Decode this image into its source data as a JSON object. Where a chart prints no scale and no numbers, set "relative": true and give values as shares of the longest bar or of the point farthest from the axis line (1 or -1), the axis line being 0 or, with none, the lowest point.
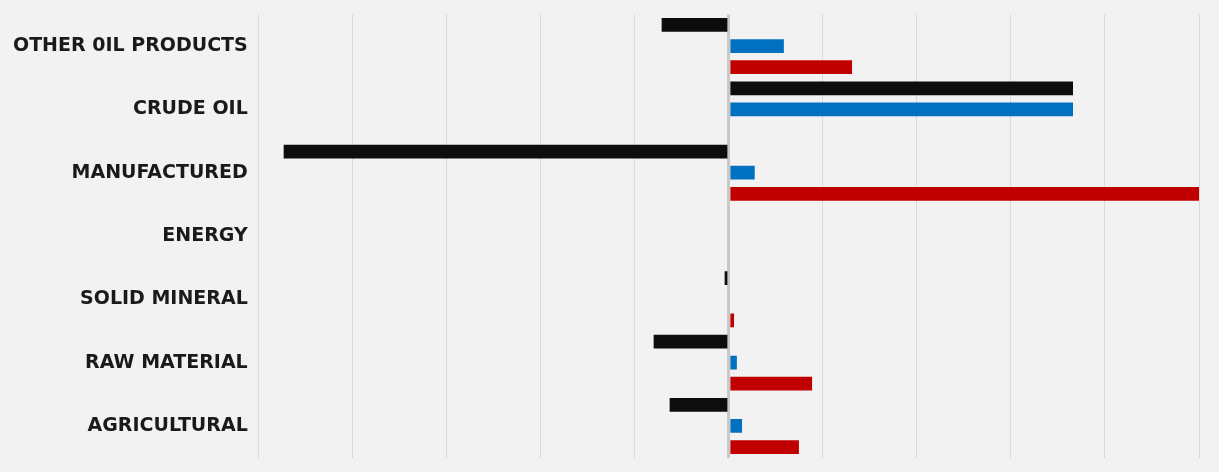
{
  "chart_data": {
    "type": "bar",
    "orientation": "horizontal",
    "relative": true,
    "grid": "x",
    "categories": [
      "OTHER 0IL PRODUCTS",
      "CRUDE OIL",
      "MANUFACTURED",
      "ENERGY",
      "SOLID MINERAL",
      "RAW MATERIAL",
      "AGRICULTURAL"
    ],
    "series": [
      {
        "color": "#0d0d0d",
        "values": [
          -0.143,
          0.732,
          -0.947,
          0,
          -0.009,
          -0.16,
          -0.126
        ]
      },
      {
        "color": "#0070c0",
        "values": [
          0.117,
          0.732,
          0.055,
          0,
          0,
          0.017,
          0.028
        ]
      },
      {
        "color": "#c00000",
        "values": [
          0.262,
          0,
          1,
          0,
          0.011,
          0.177,
          0.149
        ]
      }
    ]
  }
}
